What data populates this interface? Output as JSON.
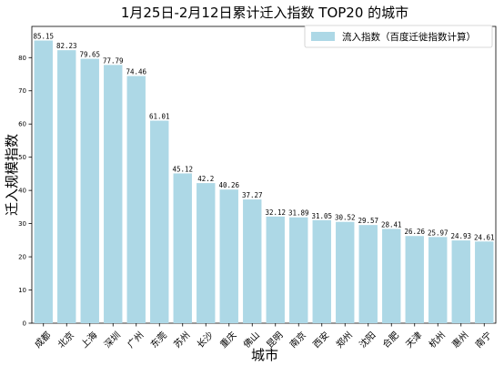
{
  "chart_data": {
    "type": "bar",
    "title": "1月25日-2月12日累计迁入指数 TOP20 的城市",
    "xlabel": "城市",
    "ylabel": "迁入规模指数",
    "legend": {
      "label": "流入指数（百度迁徙指数计算）",
      "placement": "top-right"
    },
    "ylim": [
      0,
      89.4
    ],
    "yticks": [
      "0",
      "10",
      "20",
      "30",
      "40",
      "50",
      "60",
      "70",
      "80"
    ],
    "categories": [
      "成都",
      "北京",
      "上海",
      "深圳",
      "广州",
      "东莞",
      "苏州",
      "长沙",
      "重庆",
      "佛山",
      "昆明",
      "南京",
      "西安",
      "郑州",
      "沈阳",
      "合肥",
      "天津",
      "杭州",
      "惠州",
      "南宁"
    ],
    "values": [
      85.15,
      82.23,
      79.65,
      77.79,
      74.46,
      61.01,
      45.12,
      42.2,
      40.26,
      37.27,
      32.12,
      31.89,
      31.05,
      30.52,
      29.57,
      28.41,
      26.26,
      25.97,
      24.93,
      24.61
    ],
    "value_labels": [
      "85.15",
      "82.23",
      "79.65",
      "77.79",
      "74.46",
      "61.01",
      "45.12",
      "42.2",
      "40.26",
      "37.27",
      "32.12",
      "31.89",
      "31.05",
      "30.52",
      "29.57",
      "28.41",
      "26.26",
      "25.97",
      "24.93",
      "24.61"
    ],
    "bar_color": "#add8e6",
    "grid": false
  }
}
